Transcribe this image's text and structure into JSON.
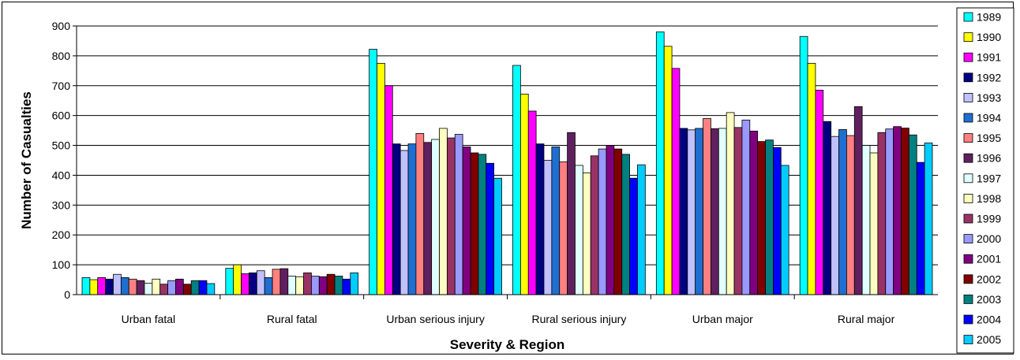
{
  "chart_data": {
    "type": "bar",
    "title": "",
    "xlabel": "Severity & Region",
    "ylabel": "Number of Casualties",
    "ylim": [
      0,
      900
    ],
    "yticks": [
      0,
      100,
      200,
      300,
      400,
      500,
      600,
      700,
      800,
      900
    ],
    "grid": true,
    "legend_position": "right",
    "categories": [
      "Urban fatal",
      "Rural fatal",
      "Urban serious injury",
      "Rural serious injury",
      "Urban major",
      "Rural major"
    ],
    "series": [
      {
        "name": "1989",
        "color": "#00FFFF",
        "values": [
          57,
          88,
          822,
          768,
          880,
          865
        ]
      },
      {
        "name": "1990",
        "color": "#FFFF00",
        "values": [
          50,
          100,
          775,
          672,
          832,
          775
        ]
      },
      {
        "name": "1991",
        "color": "#FF00FF",
        "values": [
          57,
          70,
          700,
          615,
          758,
          685
        ]
      },
      {
        "name": "1992",
        "color": "#000080",
        "values": [
          52,
          73,
          505,
          505,
          557,
          580
        ]
      },
      {
        "name": "1993",
        "color": "#C0C0FF",
        "values": [
          68,
          80,
          483,
          450,
          552,
          530
        ]
      },
      {
        "name": "1994",
        "color": "#1F6FD0",
        "values": [
          57,
          57,
          505,
          495,
          557,
          553
        ]
      },
      {
        "name": "1995",
        "color": "#FF8080",
        "values": [
          52,
          85,
          540,
          445,
          590,
          533
        ]
      },
      {
        "name": "1996",
        "color": "#602060",
        "values": [
          47,
          87,
          510,
          543,
          556,
          630
        ]
      },
      {
        "name": "1997",
        "color": "#E0FFFF",
        "values": [
          38,
          62,
          520,
          433,
          557,
          500
        ]
      },
      {
        "name": "1998",
        "color": "#FFFFC0",
        "values": [
          52,
          60,
          557,
          408,
          610,
          475
        ]
      },
      {
        "name": "1999",
        "color": "#993366",
        "values": [
          35,
          73,
          525,
          465,
          560,
          543
        ]
      },
      {
        "name": "2000",
        "color": "#9999FF",
        "values": [
          47,
          62,
          537,
          488,
          585,
          555
        ]
      },
      {
        "name": "2001",
        "color": "#800080",
        "values": [
          52,
          60,
          495,
          500,
          548,
          563
        ]
      },
      {
        "name": "2002",
        "color": "#800000",
        "values": [
          35,
          68,
          475,
          488,
          513,
          558
        ]
      },
      {
        "name": "2003",
        "color": "#008080",
        "values": [
          47,
          62,
          470,
          470,
          518,
          535
        ]
      },
      {
        "name": "2004",
        "color": "#0000FF",
        "values": [
          47,
          52,
          440,
          390,
          493,
          443
        ]
      },
      {
        "name": "2005",
        "color": "#00CCFF",
        "values": [
          37,
          73,
          390,
          435,
          433,
          508
        ]
      }
    ]
  }
}
